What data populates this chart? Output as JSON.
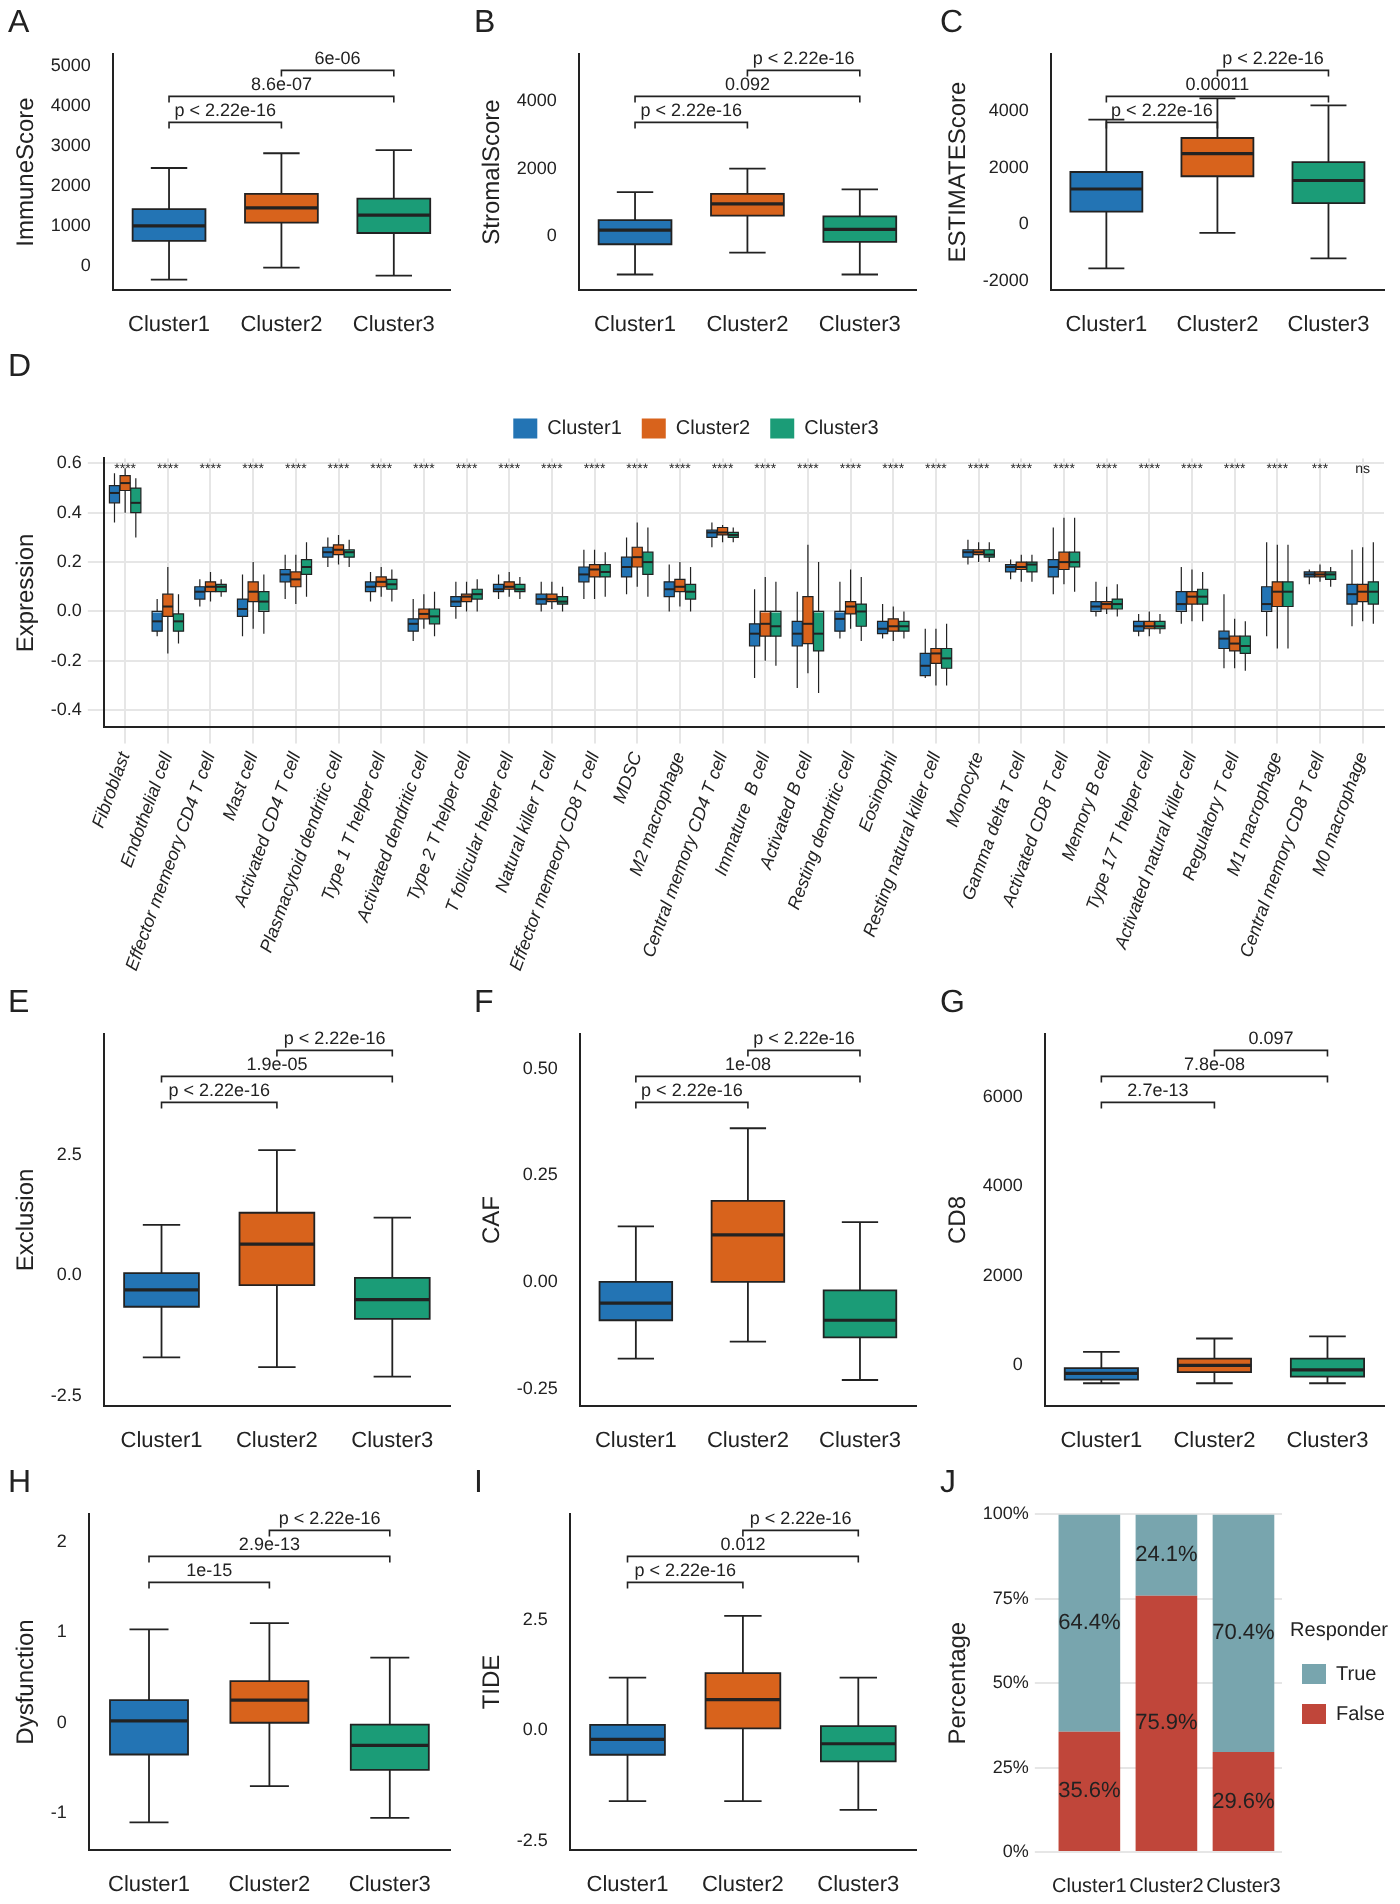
{
  "chart_data": [
    {
      "type": "box",
      "title": "A",
      "ylabel": "ImmuneScore",
      "categories": [
        "Cluster1",
        "Cluster2",
        "Cluster3"
      ],
      "colors": [
        "#2374b4",
        "#d8631c",
        "#1b9c77"
      ],
      "boxes": [
        {
          "low": -350,
          "q1": 620,
          "median": 1000,
          "q3": 1420,
          "high": 2450
        },
        {
          "low": -50,
          "q1": 1080,
          "median": 1450,
          "q3": 1800,
          "high": 2820
        },
        {
          "low": -250,
          "q1": 820,
          "median": 1270,
          "q3": 1680,
          "high": 2900
        }
      ],
      "ylim": [
        -600,
        5300
      ],
      "yticks": [
        0,
        1000,
        2000,
        3000,
        4000,
        5000
      ],
      "annotations": [
        "p < 2.22e-16",
        "8.6e-07",
        "6e-06"
      ]
    },
    {
      "type": "box",
      "title": "B",
      "ylabel": "StromalScore",
      "categories": [
        "Cluster1",
        "Cluster2",
        "Cluster3"
      ],
      "colors": [
        "#2374b4",
        "#d8631c",
        "#1b9c77"
      ],
      "boxes": [
        {
          "low": -1150,
          "q1": -250,
          "median": 170,
          "q3": 470,
          "high": 1300
        },
        {
          "low": -500,
          "q1": 600,
          "median": 950,
          "q3": 1250,
          "high": 2000
        },
        {
          "low": -1150,
          "q1": -180,
          "median": 190,
          "q3": 580,
          "high": 1380
        }
      ],
      "ylim": [
        -1600,
        5400
      ],
      "yticks": [
        0,
        2000,
        4000
      ],
      "annotations": [
        "p < 2.22e-16",
        "0.092",
        "p < 2.22e-16"
      ]
    },
    {
      "type": "box",
      "title": "C",
      "ylabel": "ESTIMATEScore",
      "categories": [
        "Cluster1",
        "Cluster2",
        "Cluster3"
      ],
      "colors": [
        "#2374b4",
        "#d8631c",
        "#1b9c77"
      ],
      "boxes": [
        {
          "low": -1550,
          "q1": 450,
          "median": 1250,
          "q3": 1850,
          "high": 3700
        },
        {
          "low": -300,
          "q1": 1700,
          "median": 2500,
          "q3": 3050,
          "high": 4450
        },
        {
          "low": -1200,
          "q1": 750,
          "median": 1550,
          "q3": 2200,
          "high": 4200
        }
      ],
      "ylim": [
        -2300,
        6000
      ],
      "yticks": [
        -2000,
        0,
        2000,
        4000
      ],
      "annotations": [
        "p < 2.22e-16",
        "0.00011",
        "p < 2.22e-16"
      ]
    },
    {
      "type": "box",
      "title": "D",
      "ylabel": "Expression",
      "legend": "top",
      "grid": true,
      "categories": [
        "Fibroblast",
        "Endothelial cell",
        "Effector memeory CD4 T cell",
        "Mast cell",
        "Activated CD4 T cell",
        "Plasmacytoid dendritic cell",
        "Type 1 T helper cell",
        "Activated dendritic cell",
        "Type 2 T helper cell",
        "T follicular helper cell",
        "Natural killer T cell",
        "Effector memeory CD8 T cell",
        "MDSC",
        "M2 macrophage",
        "Central memory CD4 T cell",
        "Immature  B cell",
        "Activated B cell",
        "Resting dendritic cell",
        "Eosinophil",
        "Resting natural killer cell",
        "Monocyte",
        "Gamma delta T cell",
        "Activated CD8 T cell",
        "Memory B cell",
        "Type 17 T helper cell",
        "Activated natural killer cell",
        "Regulatory T cell",
        "M1 macrophage",
        "Central memory CD8 T cell",
        "M0 macrophage"
      ],
      "ylim": [
        -0.47,
        0.62
      ],
      "yticks": [
        {
          "value": -0.4,
          "label": "-0.4"
        },
        {
          "value": -0.2,
          "label": "-0.2"
        },
        {
          "value": 0,
          "label": "0.0"
        },
        {
          "value": 0.2,
          "label": "0.2"
        },
        {
          "value": 0.4,
          "label": "0.4"
        },
        {
          "value": 0.6,
          "label": "0.6"
        }
      ],
      "annotations": [
        "****",
        "****",
        "****",
        "****",
        "****",
        "****",
        "****",
        "****",
        "****",
        "****",
        "****",
        "****",
        "****",
        "****",
        "****",
        "****",
        "****",
        "****",
        "****",
        "****",
        "****",
        "****",
        "****",
        "****",
        "****",
        "****",
        "****",
        "****",
        "***",
        "ns"
      ],
      "series": [
        {
          "name": "Cluster1",
          "color": "#2374b4",
          "boxes": [
            {
              "low": 0.36,
              "q1": 0.44,
              "median": 0.48,
              "q3": 0.51,
              "high": 0.56
            },
            {
              "low": -0.1,
              "q1": -0.08,
              "median": -0.04,
              "q3": 0,
              "high": 0.05
            },
            {
              "low": 0.02,
              "q1": 0.05,
              "median": 0.08,
              "q3": 0.1,
              "high": 0.13
            },
            {
              "low": -0.1,
              "q1": -0.02,
              "median": 0.01,
              "q3": 0.05,
              "high": 0.15
            },
            {
              "low": 0.05,
              "q1": 0.12,
              "median": 0.15,
              "q3": 0.17,
              "high": 0.23
            },
            {
              "low": 0.18,
              "q1": 0.22,
              "median": 0.24,
              "q3": 0.26,
              "high": 0.3
            },
            {
              "low": 0.04,
              "q1": 0.08,
              "median": 0.1,
              "q3": 0.12,
              "high": 0.16
            },
            {
              "low": -0.12,
              "q1": -0.08,
              "median": -0.05,
              "q3": -0.03,
              "high": 0.05
            },
            {
              "low": -0.03,
              "q1": 0.02,
              "median": 0.04,
              "q3": 0.06,
              "high": 0.12
            },
            {
              "low": 0.05,
              "q1": 0.08,
              "median": 0.09,
              "q3": 0.11,
              "high": 0.15
            },
            {
              "low": 0,
              "q1": 0.03,
              "median": 0.05,
              "q3": 0.07,
              "high": 0.12
            },
            {
              "low": 0.05,
              "q1": 0.12,
              "median": 0.15,
              "q3": 0.18,
              "high": 0.25
            },
            {
              "low": 0.07,
              "q1": 0.14,
              "median": 0.18,
              "q3": 0.22,
              "high": 0.3
            },
            {
              "low": 0,
              "q1": 0.06,
              "median": 0.09,
              "q3": 0.12,
              "high": 0.19
            },
            {
              "low": 0.26,
              "q1": 0.3,
              "median": 0.32,
              "q3": 0.33,
              "high": 0.36
            },
            {
              "low": -0.27,
              "q1": -0.14,
              "median": -0.09,
              "q3": -0.05,
              "high": 0.09
            },
            {
              "low": -0.31,
              "q1": -0.14,
              "median": -0.09,
              "q3": -0.04,
              "high": 0.08
            },
            {
              "low": -0.11,
              "q1": -0.08,
              "median": -0.03,
              "q3": 0,
              "high": 0.12
            },
            {
              "low": -0.11,
              "q1": -0.09,
              "median": -0.07,
              "q3": -0.04,
              "high": 0.03
            },
            {
              "low": -0.27,
              "q1": -0.26,
              "median": -0.22,
              "q3": -0.17,
              "high": -0.07
            },
            {
              "low": 0.19,
              "q1": 0.22,
              "median": 0.24,
              "q3": 0.25,
              "high": 0.29
            },
            {
              "low": 0.13,
              "q1": 0.16,
              "median": 0.18,
              "q3": 0.19,
              "high": 0.21
            },
            {
              "low": 0.07,
              "q1": 0.14,
              "median": 0.18,
              "q3": 0.21,
              "high": 0.34
            },
            {
              "low": -0.02,
              "q1": 0,
              "median": 0.02,
              "q3": 0.04,
              "high": 0.12
            },
            {
              "low": -0.1,
              "q1": -0.08,
              "median": -0.06,
              "q3": -0.04,
              "high": -0.01
            },
            {
              "low": -0.05,
              "q1": 0,
              "median": 0.03,
              "q3": 0.08,
              "high": 0.18
            },
            {
              "low": -0.23,
              "q1": -0.15,
              "median": -0.11,
              "q3": -0.08,
              "high": 0.07
            },
            {
              "low": -0.1,
              "q1": 0,
              "median": 0.03,
              "q3": 0.1,
              "high": 0.28
            },
            {
              "low": 0.11,
              "q1": 0.14,
              "median": 0.15,
              "q3": 0.16,
              "high": 0.17
            },
            {
              "low": -0.06,
              "q1": 0.03,
              "median": 0.07,
              "q3": 0.11,
              "high": 0.25
            }
          ]
        },
        {
          "name": "Cluster2",
          "color": "#d8631c",
          "boxes": [
            {
              "low": 0.4,
              "q1": 0.49,
              "median": 0.52,
              "q3": 0.55,
              "high": 0.58
            },
            {
              "low": -0.17,
              "q1": -0.02,
              "median": 0.02,
              "q3": 0.07,
              "high": 0.18
            },
            {
              "low": 0.04,
              "q1": 0.08,
              "median": 0.1,
              "q3": 0.12,
              "high": 0.16
            },
            {
              "low": -0.07,
              "q1": 0.04,
              "median": 0.08,
              "q3": 0.12,
              "high": 0.2
            },
            {
              "low": 0.03,
              "q1": 0.1,
              "median": 0.13,
              "q3": 0.16,
              "high": 0.23
            },
            {
              "low": 0.19,
              "q1": 0.23,
              "median": 0.25,
              "q3": 0.27,
              "high": 0.31
            },
            {
              "low": 0.06,
              "q1": 0.1,
              "median": 0.12,
              "q3": 0.14,
              "high": 0.18
            },
            {
              "low": -0.07,
              "q1": -0.03,
              "median": -0.01,
              "q3": 0.01,
              "high": 0.07
            },
            {
              "low": 0,
              "q1": 0.04,
              "median": 0.06,
              "q3": 0.07,
              "high": 0.12
            },
            {
              "low": 0.06,
              "q1": 0.09,
              "median": 0.1,
              "q3": 0.12,
              "high": 0.16
            },
            {
              "low": 0.01,
              "q1": 0.04,
              "median": 0.05,
              "q3": 0.07,
              "high": 0.12
            },
            {
              "low": 0.05,
              "q1": 0.14,
              "median": 0.17,
              "q3": 0.19,
              "high": 0.25
            },
            {
              "low": 0.1,
              "q1": 0.18,
              "median": 0.22,
              "q3": 0.26,
              "high": 0.36
            },
            {
              "low": 0.02,
              "q1": 0.08,
              "median": 0.1,
              "q3": 0.13,
              "high": 0.2
            },
            {
              "low": 0.28,
              "q1": 0.31,
              "median": 0.32,
              "q3": 0.34,
              "high": 0.35
            },
            {
              "low": -0.2,
              "q1": -0.1,
              "median": -0.05,
              "q3": 0,
              "high": 0.14
            },
            {
              "low": -0.25,
              "q1": -0.13,
              "median": -0.05,
              "q3": 0.06,
              "high": 0.27
            },
            {
              "low": -0.07,
              "q1": -0.01,
              "median": 0.02,
              "q3": 0.04,
              "high": 0.17
            },
            {
              "low": -0.12,
              "q1": -0.08,
              "median": -0.06,
              "q3": -0.03,
              "high": 0.02
            },
            {
              "low": -0.3,
              "q1": -0.21,
              "median": -0.17,
              "q3": -0.15,
              "high": -0.07
            },
            {
              "low": 0.2,
              "q1": 0.23,
              "median": 0.24,
              "q3": 0.25,
              "high": 0.28
            },
            {
              "low": 0.12,
              "q1": 0.17,
              "median": 0.18,
              "q3": 0.2,
              "high": 0.23
            },
            {
              "low": 0.11,
              "q1": 0.17,
              "median": 0.2,
              "q3": 0.24,
              "high": 0.38
            },
            {
              "low": -0.01,
              "q1": 0.01,
              "median": 0.03,
              "q3": 0.04,
              "high": 0.1
            },
            {
              "low": -0.1,
              "q1": -0.07,
              "median": -0.06,
              "q3": -0.04,
              "high": 0
            },
            {
              "low": -0.04,
              "q1": 0.03,
              "median": 0.06,
              "q3": 0.08,
              "high": 0.17
            },
            {
              "low": -0.23,
              "q1": -0.16,
              "median": -0.13,
              "q3": -0.1,
              "high": -0.03
            },
            {
              "low": -0.15,
              "q1": 0.02,
              "median": 0.08,
              "q3": 0.12,
              "high": 0.27
            },
            {
              "low": 0.12,
              "q1": 0.14,
              "median": 0.15,
              "q3": 0.16,
              "high": 0.19
            },
            {
              "low": -0.04,
              "q1": 0.04,
              "median": 0.08,
              "q3": 0.11,
              "high": 0.26
            }
          ]
        },
        {
          "name": "Cluster3",
          "color": "#1b9c77",
          "boxes": [
            {
              "low": 0.3,
              "q1": 0.4,
              "median": 0.44,
              "q3": 0.5,
              "high": 0.54
            },
            {
              "low": -0.13,
              "q1": -0.08,
              "median": -0.04,
              "q3": -0.01,
              "high": 0.07
            },
            {
              "low": 0.06,
              "q1": 0.08,
              "median": 0.1,
              "q3": 0.11,
              "high": 0.13
            },
            {
              "low": -0.09,
              "q1": 0,
              "median": 0.04,
              "q3": 0.08,
              "high": 0.15
            },
            {
              "low": 0.06,
              "q1": 0.15,
              "median": 0.18,
              "q3": 0.21,
              "high": 0.28
            },
            {
              "low": 0.18,
              "q1": 0.22,
              "median": 0.24,
              "q3": 0.25,
              "high": 0.29
            },
            {
              "low": 0.04,
              "q1": 0.09,
              "median": 0.11,
              "q3": 0.13,
              "high": 0.17
            },
            {
              "low": -0.1,
              "q1": -0.05,
              "median": -0.02,
              "q3": 0.01,
              "high": 0.08
            },
            {
              "low": 0,
              "q1": 0.05,
              "median": 0.07,
              "q3": 0.09,
              "high": 0.13
            },
            {
              "low": 0.05,
              "q1": 0.08,
              "median": 0.09,
              "q3": 0.11,
              "high": 0.14
            },
            {
              "low": 0,
              "q1": 0.03,
              "median": 0.04,
              "q3": 0.06,
              "high": 0.1
            },
            {
              "low": 0.06,
              "q1": 0.14,
              "median": 0.16,
              "q3": 0.19,
              "high": 0.24
            },
            {
              "low": 0.06,
              "q1": 0.15,
              "median": 0.2,
              "q3": 0.24,
              "high": 0.34
            },
            {
              "low": 0,
              "q1": 0.05,
              "median": 0.08,
              "q3": 0.11,
              "high": 0.18
            },
            {
              "low": 0.28,
              "q1": 0.3,
              "median": 0.31,
              "q3": 0.32,
              "high": 0.34
            },
            {
              "low": -0.22,
              "q1": -0.1,
              "median": -0.06,
              "q3": 0,
              "high": 0.12
            },
            {
              "low": -0.33,
              "q1": -0.16,
              "median": -0.09,
              "q3": 0,
              "high": 0.2
            },
            {
              "low": -0.12,
              "q1": -0.06,
              "median": 0,
              "q3": 0.03,
              "high": 0.14
            },
            {
              "low": -0.11,
              "q1": -0.08,
              "median": -0.06,
              "q3": -0.04,
              "high": 0
            },
            {
              "low": -0.3,
              "q1": -0.23,
              "median": -0.19,
              "q3": -0.15,
              "high": -0.05
            },
            {
              "low": 0.2,
              "q1": 0.22,
              "median": 0.23,
              "q3": 0.25,
              "high": 0.28
            },
            {
              "low": 0.12,
              "q1": 0.16,
              "median": 0.19,
              "q3": 0.2,
              "high": 0.23
            },
            {
              "low": 0.08,
              "q1": 0.18,
              "median": 0.2,
              "q3": 0.24,
              "high": 0.38
            },
            {
              "low": -0.02,
              "q1": 0.01,
              "median": 0.03,
              "q3": 0.05,
              "high": 0.11
            },
            {
              "low": -0.09,
              "q1": -0.07,
              "median": -0.06,
              "q3": -0.04,
              "high": -0.01
            },
            {
              "low": -0.04,
              "q1": 0.03,
              "median": 0.06,
              "q3": 0.09,
              "high": 0.16
            },
            {
              "low": -0.24,
              "q1": -0.17,
              "median": -0.14,
              "q3": -0.1,
              "high": -0.04
            },
            {
              "low": -0.15,
              "q1": 0.02,
              "median": 0.08,
              "q3": 0.12,
              "high": 0.27
            },
            {
              "low": 0.1,
              "q1": 0.13,
              "median": 0.15,
              "q3": 0.16,
              "high": 0.18
            },
            {
              "low": -0.05,
              "q1": 0.03,
              "median": 0.08,
              "q3": 0.12,
              "high": 0.28
            }
          ]
        }
      ]
    },
    {
      "type": "box",
      "title": "E",
      "ylabel": "Exclusion",
      "categories": [
        "Cluster1",
        "Cluster2",
        "Cluster3"
      ],
      "colors": [
        "#2374b4",
        "#d8631c",
        "#1b9c77"
      ],
      "boxes": [
        {
          "low": -1.7,
          "q1": -0.65,
          "median": -0.3,
          "q3": 0.05,
          "high": 1.05
        },
        {
          "low": -1.9,
          "q1": -0.2,
          "median": 0.65,
          "q3": 1.3,
          "high": 2.6
        },
        {
          "low": -2.1,
          "q1": -0.9,
          "median": -0.5,
          "q3": -0.05,
          "high": 1.2
        }
      ],
      "ylim": [
        -2.7,
        5
      ],
      "yticks": [
        {
          "value": -2.5,
          "label": "-2.5"
        },
        {
          "value": 0,
          "label": "0.0"
        },
        {
          "value": 2.5,
          "label": "2.5"
        }
      ],
      "annotations": [
        "p < 2.22e-16",
        "1.9e-05",
        "p < 2.22e-16"
      ]
    },
    {
      "type": "box",
      "title": "F",
      "ylabel": "CAF",
      "categories": [
        "Cluster1",
        "Cluster2",
        "Cluster3"
      ],
      "colors": [
        "#2374b4",
        "#d8631c",
        "#1b9c77"
      ],
      "boxes": [
        {
          "low": -0.18,
          "q1": -0.09,
          "median": -0.05,
          "q3": 0,
          "high": 0.13
        },
        {
          "low": -0.14,
          "q1": 0,
          "median": 0.11,
          "q3": 0.19,
          "high": 0.36
        },
        {
          "low": -0.23,
          "q1": -0.13,
          "median": -0.09,
          "q3": -0.02,
          "high": 0.14
        }
      ],
      "ylim": [
        -0.29,
        0.58
      ],
      "yticks": [
        {
          "value": -0.25,
          "label": "-0.25"
        },
        {
          "value": 0,
          "label": "0.00"
        },
        {
          "value": 0.25,
          "label": "0.25"
        },
        {
          "value": 0.5,
          "label": "0.50"
        }
      ],
      "annotations": [
        "p < 2.22e-16",
        "1e-08",
        "p < 2.22e-16"
      ]
    },
    {
      "type": "box",
      "title": "G",
      "ylabel": "CD8",
      "categories": [
        "Cluster1",
        "Cluster2",
        "Cluster3"
      ],
      "colors": [
        "#2374b4",
        "#d8631c",
        "#1b9c77"
      ],
      "boxes": [
        {
          "low": -400,
          "q1": -320,
          "median": -180,
          "q3": -60,
          "high": 300
        },
        {
          "low": -400,
          "q1": -150,
          "median": 0,
          "q3": 150,
          "high": 600
        },
        {
          "low": -400,
          "q1": -250,
          "median": -100,
          "q3": 150,
          "high": 650
        }
      ],
      "ylim": [
        -900,
        7400
      ],
      "yticks": [
        0,
        2000,
        4000,
        6000
      ],
      "annotations": [
        "2.7e-13",
        "7.8e-08",
        "0.097"
      ]
    },
    {
      "type": "box",
      "title": "H",
      "ylabel": "Dysfunction",
      "categories": [
        "Cluster1",
        "Cluster2",
        "Cluster3"
      ],
      "colors": [
        "#2374b4",
        "#d8631c",
        "#1b9c77"
      ],
      "boxes": [
        {
          "low": -1.1,
          "q1": -0.35,
          "median": 0.02,
          "q3": 0.25,
          "high": 1.03
        },
        {
          "low": -0.7,
          "q1": 0,
          "median": 0.25,
          "q3": 0.46,
          "high": 1.1
        },
        {
          "low": -1.05,
          "q1": -0.52,
          "median": -0.25,
          "q3": -0.02,
          "high": 0.72
        }
      ],
      "ylim": [
        -1.4,
        2.3
      ],
      "yticks": [
        -1,
        0,
        1,
        2
      ],
      "annotations": [
        "1e-15",
        "2.9e-13",
        "p < 2.22e-16"
      ]
    },
    {
      "type": "box",
      "title": "I",
      "ylabel": "TIDE",
      "categories": [
        "Cluster1",
        "Cluster2",
        "Cluster3"
      ],
      "colors": [
        "#2374b4",
        "#d8631c",
        "#1b9c77"
      ],
      "boxes": [
        {
          "low": -1.6,
          "q1": -0.55,
          "median": -0.2,
          "q3": 0.13,
          "high": 1.2
        },
        {
          "low": -1.6,
          "q1": 0.05,
          "median": 0.7,
          "q3": 1.3,
          "high": 2.6
        },
        {
          "low": -1.8,
          "q1": -0.7,
          "median": -0.3,
          "q3": 0.1,
          "high": 1.2
        }
      ],
      "ylim": [
        -2.7,
        4.9
      ],
      "yticks": [
        {
          "value": -2.5,
          "label": "-2.5"
        },
        {
          "value": 0,
          "label": "0.0"
        },
        {
          "value": 2.5,
          "label": "2.5"
        }
      ],
      "annotations": [
        "p < 2.22e-16",
        "0.012",
        "p < 2.22e-16"
      ]
    },
    {
      "type": "bar",
      "title": "J",
      "ylabel": "Percentage",
      "stacked": true,
      "legend": "right",
      "legend_title": "Responder",
      "grid": "y",
      "categories": [
        "Cluster1",
        "Cluster2",
        "Cluster3"
      ],
      "ylim": [
        0,
        100
      ],
      "yticks": [
        {
          "value": 0,
          "label": "0%"
        },
        {
          "value": 25,
          "label": "25%"
        },
        {
          "value": 50,
          "label": "50%"
        },
        {
          "value": 75,
          "label": "75%"
        },
        {
          "value": 100,
          "label": "100%"
        }
      ],
      "series": [
        {
          "name": "False",
          "color": "#c0463a",
          "values": [
            35.6,
            75.9,
            29.6
          ],
          "value_labels": [
            "35.6%",
            "75.9%",
            "29.6%"
          ]
        },
        {
          "name": "True",
          "color": "#78a5ae",
          "values": [
            64.4,
            24.1,
            70.4
          ],
          "value_labels": [
            "64.4%",
            "24.1%",
            "70.4%"
          ]
        }
      ]
    }
  ]
}
